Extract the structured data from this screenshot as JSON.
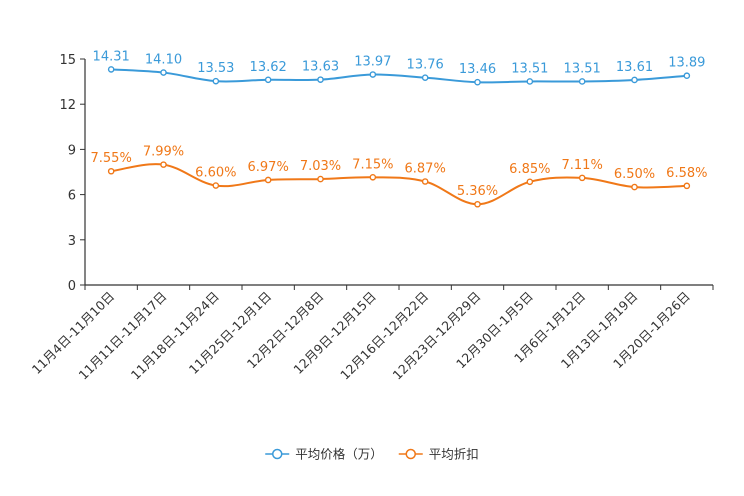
{
  "chart_data": {
    "type": "line",
    "title": "",
    "xlabel": "",
    "ylabel": "",
    "ylim": [
      0,
      15
    ],
    "yticks": [
      0,
      3,
      6,
      9,
      12,
      15
    ],
    "grid": false,
    "legend_position": "bottom-center",
    "categories": [
      "11月4日-11月10日",
      "11月11日-11月17日",
      "11月18日-11月24日",
      "11月25日-12月1日",
      "12月2日-12月8日",
      "12月9日-12月15日",
      "12月16日-12月22日",
      "12月23日-12月29日",
      "12月30日-1月5日",
      "1月6日-1月12日",
      "1月13日-1月19日",
      "1月20日-1月26日"
    ],
    "series": [
      {
        "name": "平均价格（万）",
        "color": "#3a9ad9",
        "values": [
          14.31,
          14.1,
          13.53,
          13.62,
          13.63,
          13.97,
          13.76,
          13.46,
          13.51,
          13.51,
          13.61,
          13.89
        ],
        "labels": [
          "14.31",
          "14.10",
          "13.53",
          "13.62",
          "13.63",
          "13.97",
          "13.76",
          "13.46",
          "13.51",
          "13.51",
          "13.61",
          "13.89"
        ]
      },
      {
        "name": "平均折扣",
        "color": "#f07818",
        "values": [
          7.55,
          7.99,
          6.6,
          6.97,
          7.03,
          7.15,
          6.87,
          5.36,
          6.85,
          7.11,
          6.5,
          6.58
        ],
        "labels": [
          "7.55%",
          "7.99%",
          "6.60%",
          "6.97%",
          "7.03%",
          "7.15%",
          "6.87%",
          "5.36%",
          "6.85%",
          "7.11%",
          "6.50%",
          "6.58%"
        ]
      }
    ]
  }
}
